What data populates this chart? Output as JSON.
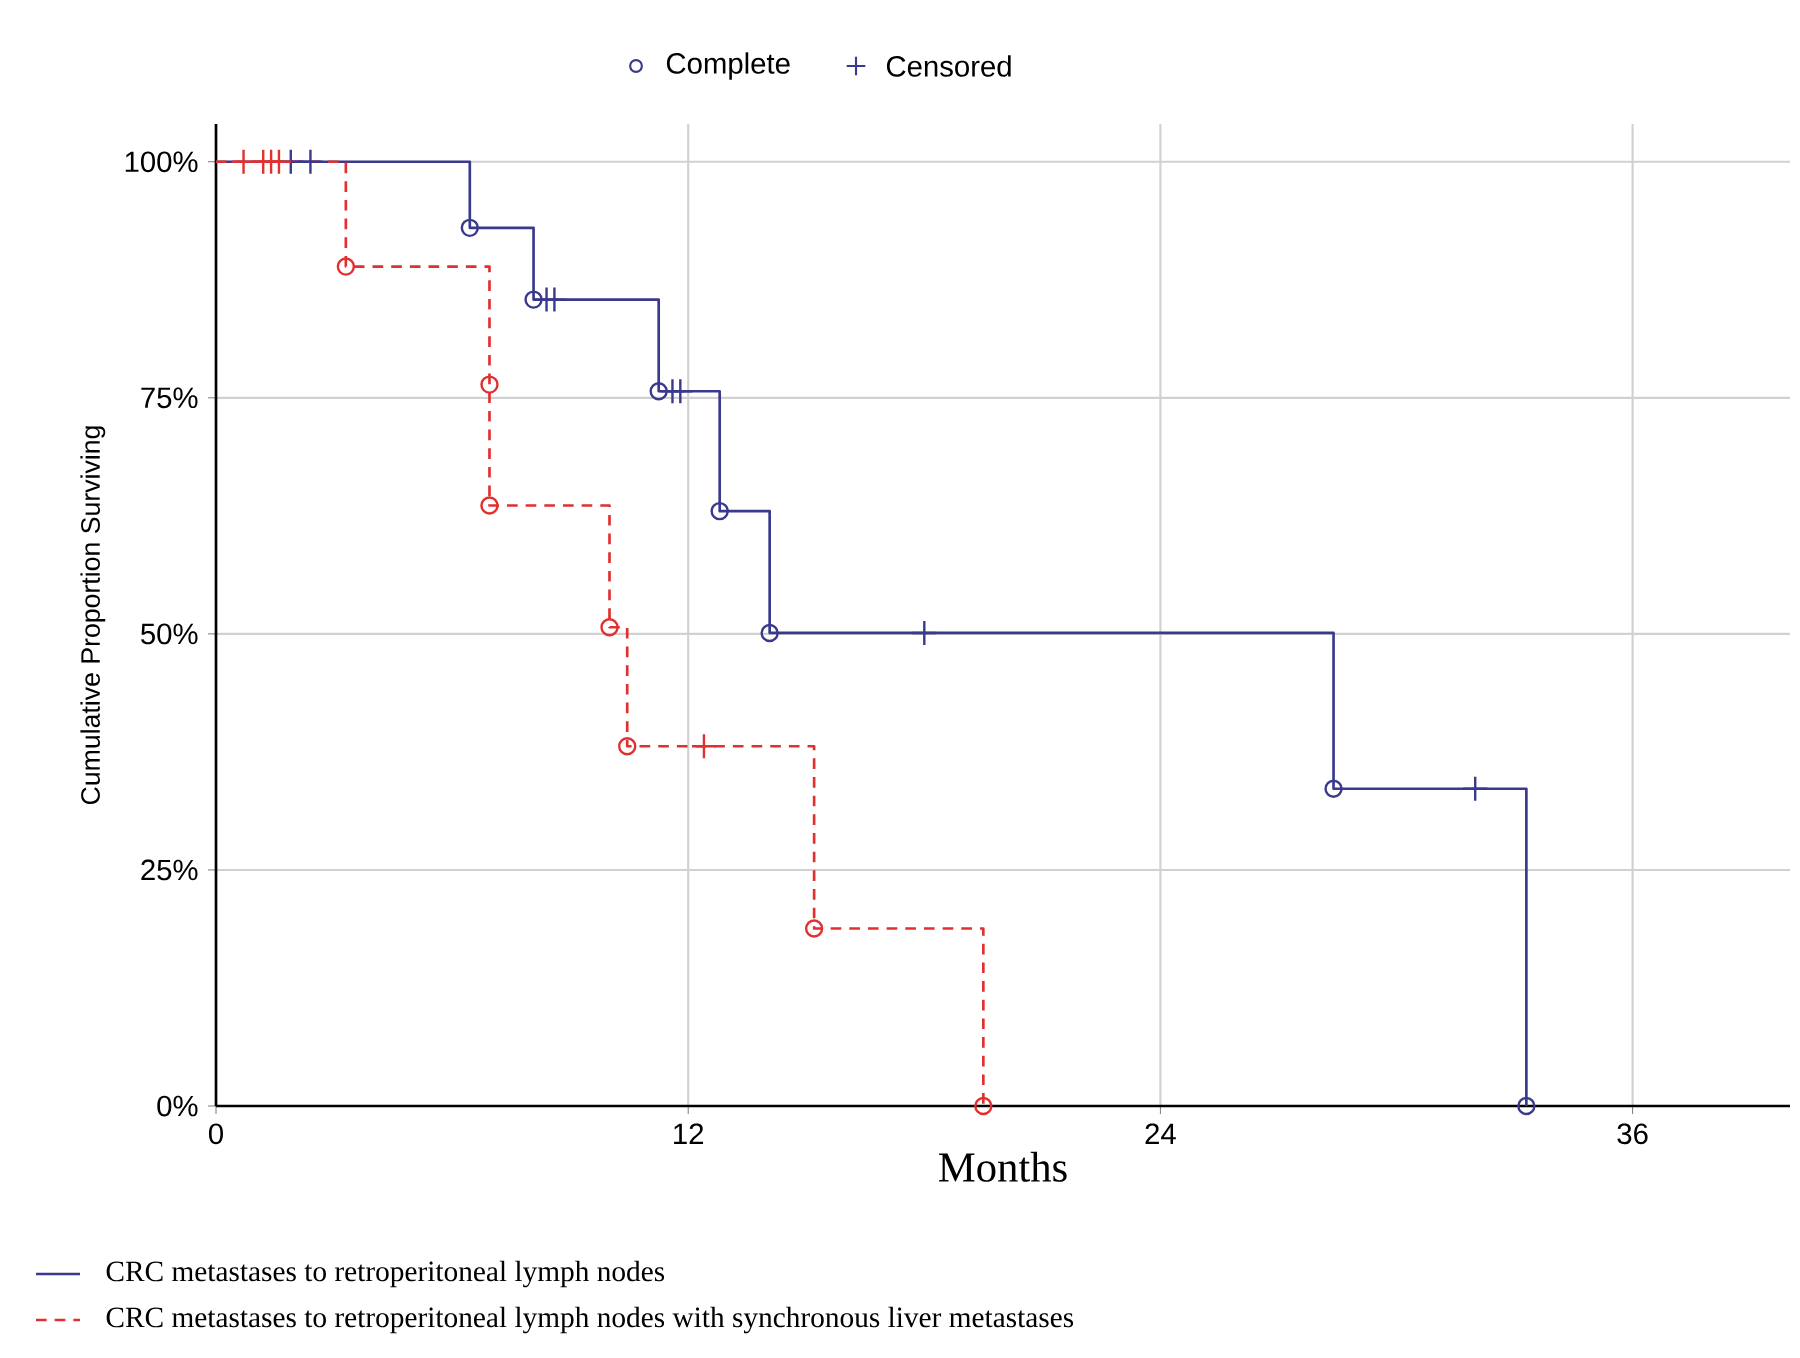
{
  "chart_data": {
    "type": "step",
    "xlabel": "Months",
    "ylabel": "Cumulative Proportion Surviving",
    "xlim": [
      0,
      40
    ],
    "xticks": [
      0,
      12,
      24,
      36
    ],
    "ylim": [
      0,
      104
    ],
    "yticks": [
      {
        "value": 0,
        "label": "0%"
      },
      {
        "value": 25,
        "label": "25%"
      },
      {
        "value": 50,
        "label": "50%"
      },
      {
        "value": 75,
        "label": "75%"
      },
      {
        "value": 100,
        "label": "100%"
      }
    ],
    "grid": true,
    "legend": "bottom left",
    "series": [
      {
        "name": "CRC metastases to retroperitoneal lymph nodes",
        "line_style": "solid",
        "color": "#3a3a8c",
        "x": [
          0,
          6.45,
          8.07,
          11.25,
          12.8,
          14.07,
          28.4,
          33.3
        ],
        "values": [
          100,
          93,
          85.4,
          75.7,
          63,
          50.1,
          33.6,
          0
        ]
      },
      {
        "name": "CRC metastases to retroperitoneal lymph nodes with synchronous liver metastases",
        "line_style": "dashed",
        "color": "#e03030",
        "x": [
          0,
          3.3,
          6.95,
          10.0,
          10.45,
          15.2,
          19.5
        ],
        "values": [
          100,
          88.9,
          63.6,
          50.7,
          38.1,
          18.8,
          0
        ]
      },
      {
        "name": "Complete",
        "type": "scatter",
        "marker": "circle",
        "color": "#3a3a8c",
        "x": [
          6.45,
          8.07,
          11.25,
          12.8,
          14.07,
          28.4,
          33.3
        ],
        "values": [
          93,
          85.4,
          75.7,
          63,
          50.1,
          33.6,
          0
        ]
      },
      {
        "type": "scatter",
        "marker": "circle",
        "color": "#e03030",
        "x": [
          3.3,
          6.95,
          6.95,
          10.0,
          10.45,
          15.2,
          19.5
        ],
        "values": [
          88.9,
          76.4,
          63.6,
          50.7,
          38.1,
          18.8,
          0
        ]
      },
      {
        "name": "Censored",
        "type": "scatter",
        "marker": "cross",
        "color": "#3a3a8c",
        "x": [
          1.9,
          2.4,
          8.4,
          8.6,
          11.6,
          11.8,
          18.0,
          32.0
        ],
        "values": [
          100,
          100,
          85.4,
          85.4,
          75.7,
          75.7,
          50.1,
          33.6
        ]
      },
      {
        "type": "scatter",
        "marker": "cross",
        "color": "#e03030",
        "x": [
          0.7,
          1.2,
          1.4,
          1.6,
          12.4
        ],
        "values": [
          100,
          100,
          100,
          100,
          38.1
        ]
      }
    ]
  }
}
